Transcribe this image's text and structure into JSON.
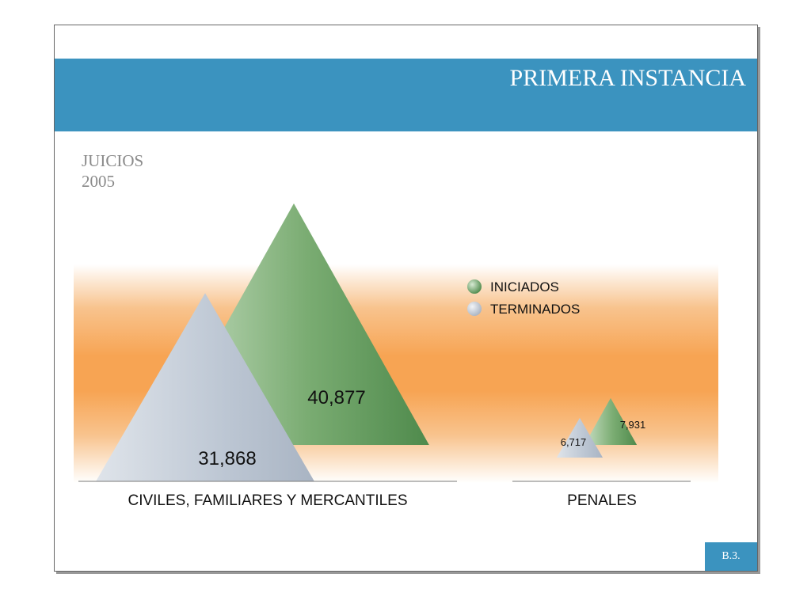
{
  "header": {
    "title": "PRIMERA INSTANCIA"
  },
  "subtitle": {
    "line1": "JUICIOS",
    "line2": "2005"
  },
  "badge": "B.3.",
  "colors": {
    "band": "#3b93bf",
    "iniciados": "#5f9a5c",
    "terminados": "#b9c4d2",
    "orange": "#f7a453"
  },
  "chart_data": {
    "type": "bar",
    "categories": [
      "CIVILES, FAMILIARES Y MERCANTILES",
      "PENALES"
    ],
    "series": [
      {
        "name": "INICIADOS",
        "values": [
          40877,
          7931
        ],
        "labels": [
          "40,877",
          "7,931"
        ]
      },
      {
        "name": "TERMINADOS",
        "values": [
          31868,
          6717
        ],
        "labels": [
          "31,868",
          "6,717"
        ]
      }
    ],
    "legend_position": "top-right"
  }
}
